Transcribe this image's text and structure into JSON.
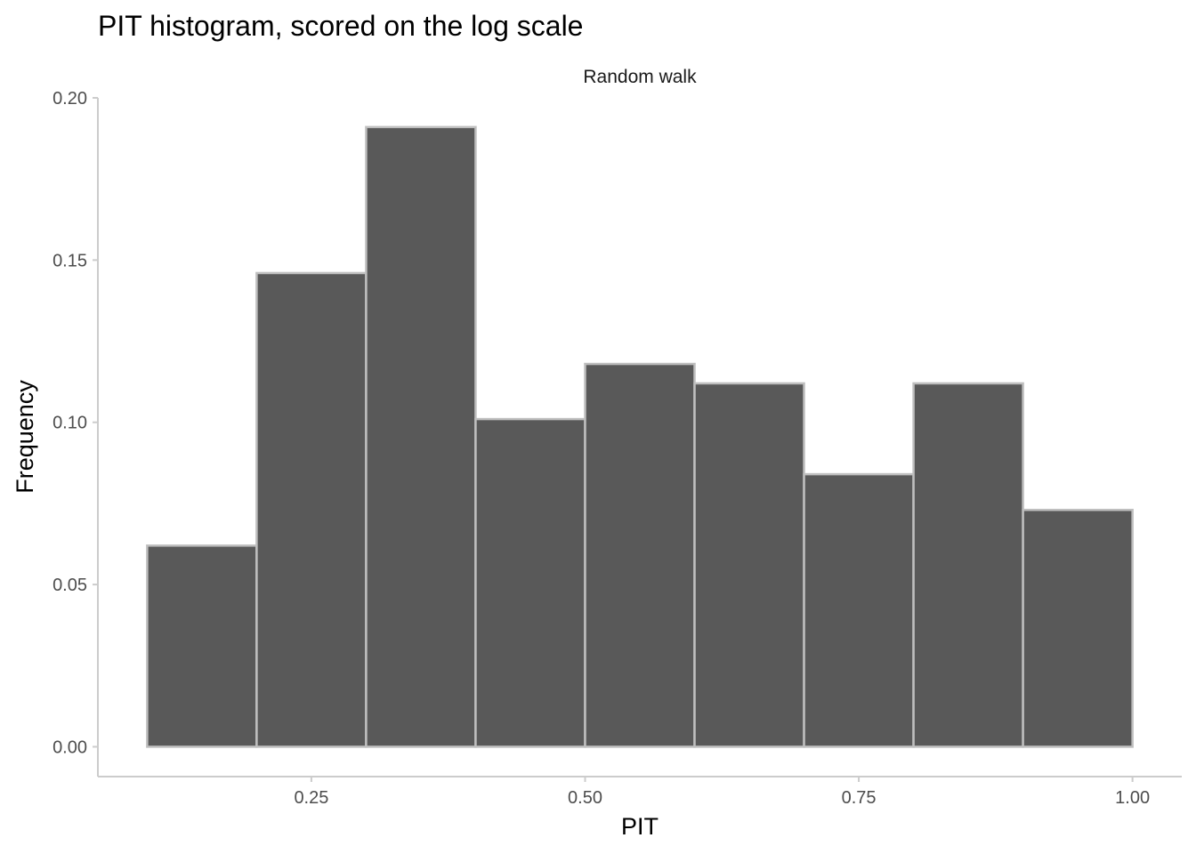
{
  "chart_data": {
    "type": "bar",
    "title": "PIT histogram, scored on the log scale",
    "facet_label": "Random walk",
    "xlabel": "PIT",
    "ylabel": "Frequency",
    "bins": [
      {
        "x0": 0.1,
        "x1": 0.2,
        "value": 0.062
      },
      {
        "x0": 0.2,
        "x1": 0.3,
        "value": 0.146
      },
      {
        "x0": 0.3,
        "x1": 0.4,
        "value": 0.191
      },
      {
        "x0": 0.4,
        "x1": 0.5,
        "value": 0.101
      },
      {
        "x0": 0.5,
        "x1": 0.6,
        "value": 0.118
      },
      {
        "x0": 0.6,
        "x1": 0.7,
        "value": 0.112
      },
      {
        "x0": 0.7,
        "x1": 0.8,
        "value": 0.084
      },
      {
        "x0": 0.8,
        "x1": 0.9,
        "value": 0.112
      },
      {
        "x0": 0.9,
        "x1": 1.0,
        "value": 0.073
      }
    ],
    "xlim": [
      0.055,
      1.045
    ],
    "ylim": [
      -0.0092,
      0.2
    ],
    "xticks": [
      {
        "value": 0.25,
        "label": "0.25"
      },
      {
        "value": 0.5,
        "label": "0.50"
      },
      {
        "value": 0.75,
        "label": "0.75"
      },
      {
        "value": 1.0,
        "label": "1.00"
      }
    ],
    "yticks": [
      {
        "value": 0.0,
        "label": "0.00"
      },
      {
        "value": 0.05,
        "label": "0.05"
      },
      {
        "value": 0.1,
        "label": "0.10"
      },
      {
        "value": 0.15,
        "label": "0.15"
      },
      {
        "value": 0.2,
        "label": "0.20"
      }
    ],
    "grid": false,
    "colors": {
      "bar_fill": "#595959",
      "bar_outline": "#bfbfbf",
      "axis": "#cccccc",
      "tick_text": "#4d4d4d"
    }
  }
}
